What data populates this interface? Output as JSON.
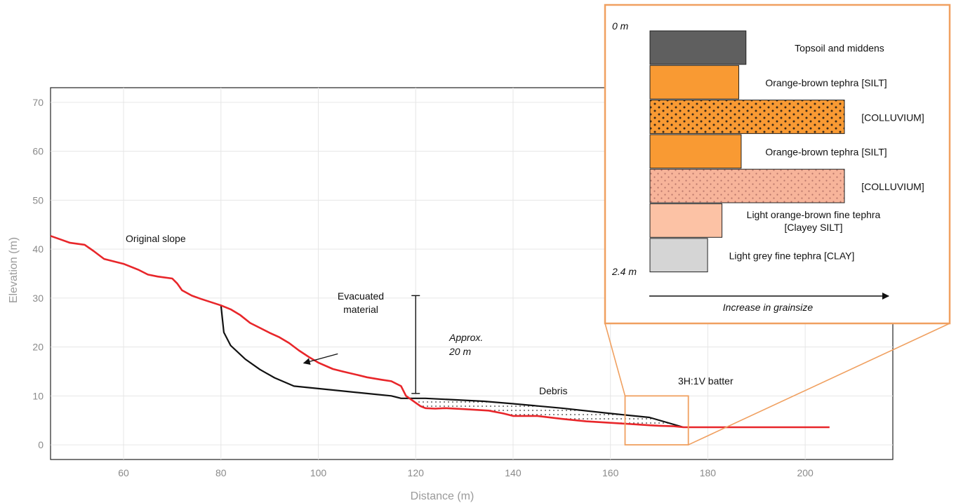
{
  "colors": {
    "original": "#e8262a",
    "current": "#111111",
    "grid": "#e6e6e6",
    "inset_border": "#f0a060",
    "topsoil": "#5f5f5f",
    "orange": "#f99a33",
    "orange_dark_dots": "#f99a33",
    "salmon_dots": "#f7b49a",
    "light_orange": "#fcc2a5",
    "light_grey": "#d5d5d5"
  },
  "chart_data": {
    "type": "line",
    "xlabel": "Distance (m)",
    "ylabel": "Elevation (m)",
    "xlim": [
      45,
      218
    ],
    "ylim": [
      -3,
      73
    ],
    "x_ticks": [
      "60",
      "80",
      "100",
      "120",
      "140",
      "160",
      "180",
      "200"
    ],
    "y_ticks": [
      "0",
      "10",
      "20",
      "30",
      "40",
      "50",
      "60",
      "70"
    ],
    "grid": true,
    "series": [
      {
        "style": "original-red",
        "points": [
          [
            45,
            42.7
          ],
          [
            47,
            42
          ],
          [
            49,
            41.3
          ],
          [
            52,
            40.9
          ],
          [
            54,
            39.5
          ],
          [
            56,
            38
          ],
          [
            60,
            37
          ],
          [
            63,
            35.8
          ],
          [
            65,
            34.8
          ],
          [
            67,
            34.4
          ],
          [
            70,
            34
          ],
          [
            71,
            33
          ],
          [
            72,
            31.6
          ],
          [
            74,
            30.5
          ],
          [
            76,
            29.8
          ],
          [
            80,
            28.5
          ],
          [
            82,
            27.7
          ],
          [
            84,
            26.5
          ],
          [
            86,
            24.9
          ],
          [
            88,
            23.9
          ],
          [
            90,
            22.9
          ],
          [
            92,
            22
          ],
          [
            94,
            20.8
          ],
          [
            96,
            19.3
          ],
          [
            98,
            18
          ],
          [
            100,
            16.8
          ],
          [
            103,
            15.5
          ],
          [
            105,
            15
          ],
          [
            108,
            14.3
          ],
          [
            110,
            13.8
          ],
          [
            113,
            13.3
          ],
          [
            115,
            13
          ],
          [
            117,
            12
          ],
          [
            118,
            10
          ],
          [
            119,
            9.3
          ],
          [
            121,
            7.9
          ],
          [
            122,
            7.5
          ],
          [
            124,
            7.4
          ],
          [
            126,
            7.5
          ],
          [
            130,
            7.3
          ],
          [
            135,
            7
          ],
          [
            138,
            6.4
          ],
          [
            140,
            5.9
          ],
          [
            145,
            5.9
          ],
          [
            150,
            5.3
          ],
          [
            155,
            4.8
          ],
          [
            160,
            4.5
          ],
          [
            165,
            4.2
          ],
          [
            168,
            4
          ],
          [
            170,
            3.9
          ],
          [
            173,
            3.8
          ],
          [
            175,
            3.6
          ],
          [
            205,
            3.6
          ]
        ]
      },
      {
        "style": "current-black",
        "points": [
          [
            80,
            28.5
          ],
          [
            80.6,
            23
          ],
          [
            82,
            20.3
          ],
          [
            85,
            17.5
          ],
          [
            88,
            15.4
          ],
          [
            91,
            13.7
          ],
          [
            95,
            12
          ],
          [
            100,
            11.5
          ],
          [
            105,
            11
          ],
          [
            110,
            10.5
          ],
          [
            115,
            10
          ],
          [
            117,
            9.5
          ],
          [
            119,
            9.5
          ],
          [
            122,
            9.5
          ],
          [
            128,
            9.2
          ],
          [
            134,
            8.9
          ],
          [
            140,
            8.4
          ],
          [
            150,
            7.5
          ],
          [
            160,
            6.4
          ],
          [
            168,
            5.6
          ],
          [
            175,
            3.6
          ]
        ]
      }
    ],
    "annotations": {
      "original_slope": "Original slope",
      "evacuated_line1": "Evacuated",
      "evacuated_line2": "material",
      "approx_line1": "Approx.",
      "approx_line2": "20 m",
      "debris": "Debris",
      "batter": "3H:1V batter"
    },
    "approx_bar": {
      "x": 120,
      "y_top": 30.5,
      "y_bottom": 10.5
    },
    "arrow": {
      "from": [
        104,
        18.6
      ],
      "to": [
        97,
        16.7
      ]
    },
    "batter_box": {
      "x_min": 163,
      "x_max": 176,
      "y_min": 0,
      "y_max": 10
    }
  },
  "inset": {
    "top_label": "0 m",
    "bottom_label": "2.4 m",
    "axis_label": "Increase in grainsize",
    "layers": [
      {
        "label_lines": [
          "Topsoil and middens"
        ],
        "relative_grainsize": 0.4,
        "color": "#5f5f5f",
        "pattern": "none"
      },
      {
        "label_lines": [
          "Orange-brown tephra [SILT]"
        ],
        "relative_grainsize": 0.37,
        "color": "#f99a33",
        "pattern": "none"
      },
      {
        "label_lines": [
          "[COLLUVIUM]"
        ],
        "relative_grainsize": 0.81,
        "color": "#f99a33",
        "pattern": "dark-dots"
      },
      {
        "label_lines": [
          "Orange-brown tephra [SILT]"
        ],
        "relative_grainsize": 0.38,
        "color": "#f99a33",
        "pattern": "none"
      },
      {
        "label_lines": [
          "[COLLUVIUM]"
        ],
        "relative_grainsize": 0.81,
        "color": "#f7b49a",
        "pattern": "light-dots"
      },
      {
        "label_lines": [
          "Light orange-brown fine tephra",
          "[Clayey SILT]"
        ],
        "relative_grainsize": 0.3,
        "color": "#fcc2a5",
        "pattern": "none"
      },
      {
        "label_lines": [
          "Light grey fine tephra [CLAY]"
        ],
        "relative_grainsize": 0.24,
        "color": "#d5d5d5",
        "pattern": "none"
      }
    ]
  }
}
